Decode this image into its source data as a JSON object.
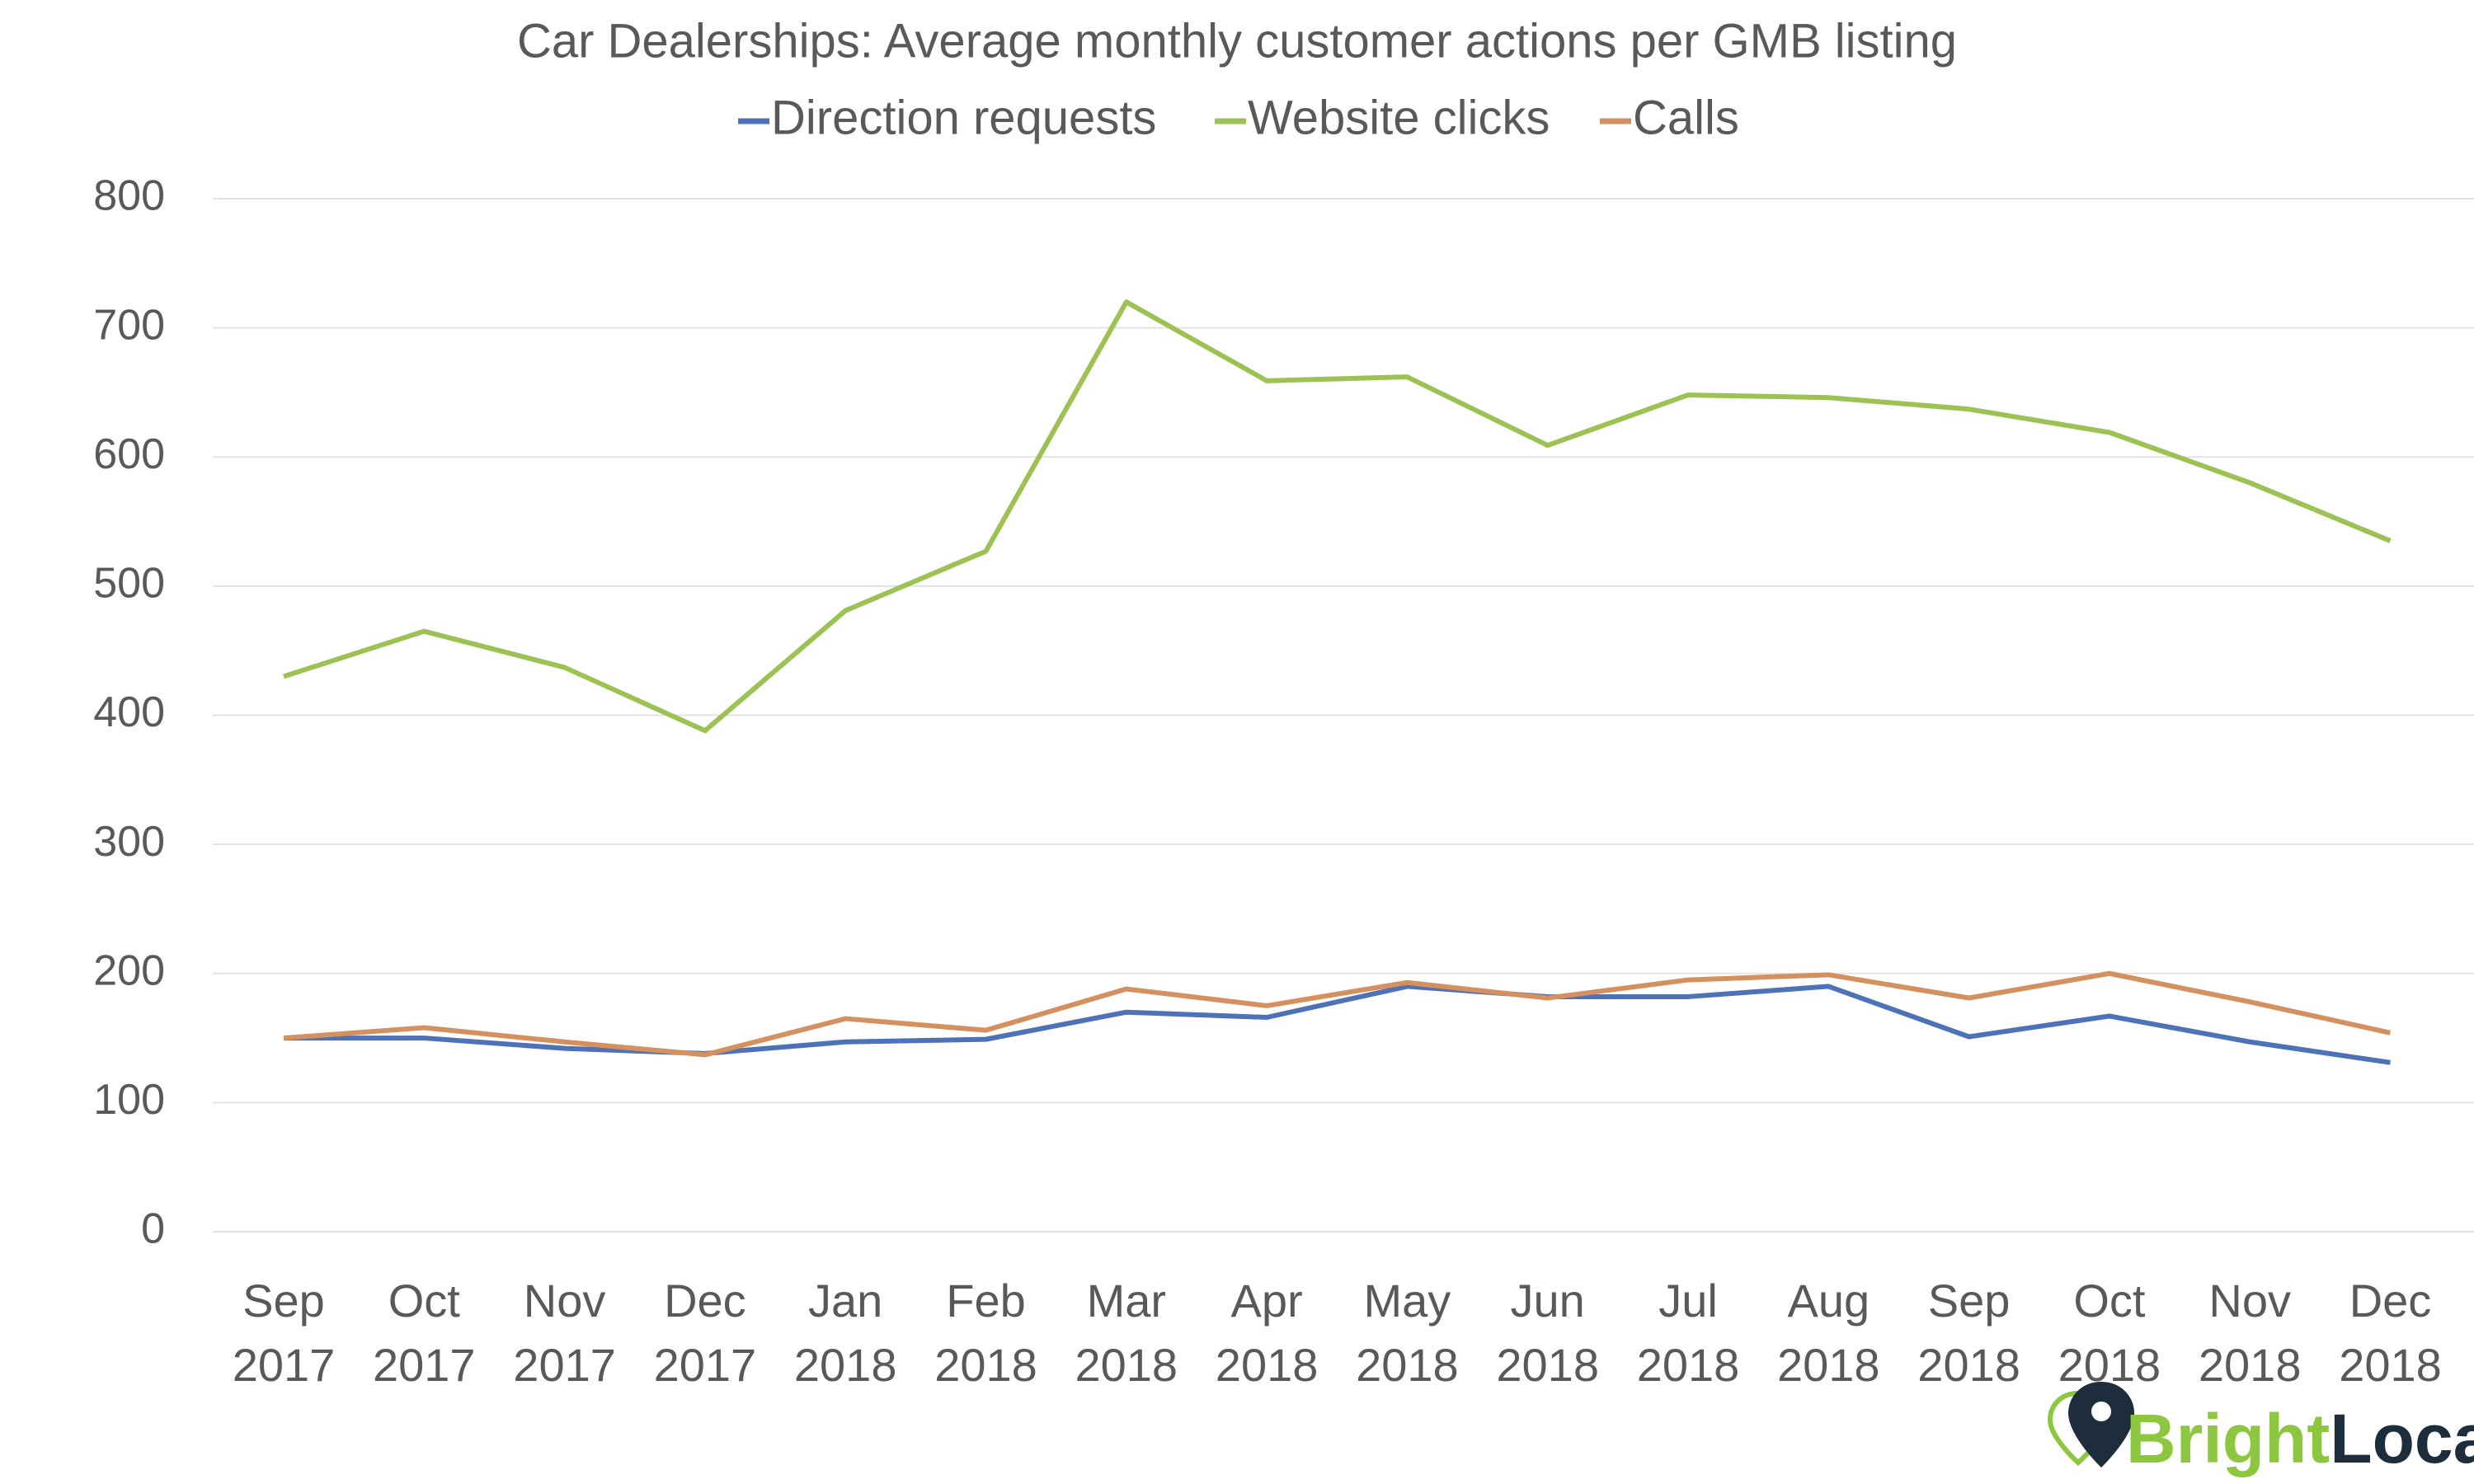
{
  "chart_data": {
    "type": "line",
    "title": "Car Dealerships: Average monthly customer actions per GMB listing",
    "categories": [
      "Sep 2017",
      "Oct 2017",
      "Nov 2017",
      "Dec 2017",
      "Jan 2018",
      "Feb 2018",
      "Mar 2018",
      "Apr 2018",
      "May 2018",
      "Jun 2018",
      "Jul 2018",
      "Aug 2018",
      "Sep 2018",
      "Oct 2018",
      "Nov 2018",
      "Dec 2018"
    ],
    "series": [
      {
        "name": "Direction requests",
        "color": "#4e72b8",
        "values": [
          150,
          150,
          142,
          138,
          147,
          149,
          170,
          166,
          190,
          182,
          182,
          190,
          151,
          167,
          147,
          131
        ]
      },
      {
        "name": "Website clicks",
        "color": "#9bc253",
        "values": [
          430,
          465,
          437,
          388,
          481,
          527,
          720,
          659,
          662,
          609,
          648,
          646,
          637,
          619,
          580,
          535
        ]
      },
      {
        "name": "Calls",
        "color": "#d4915f",
        "values": [
          150,
          158,
          147,
          137,
          165,
          156,
          188,
          175,
          193,
          181,
          195,
          199,
          181,
          200,
          178,
          154
        ]
      }
    ],
    "ylim": [
      0,
      800
    ],
    "yticks": [
      0,
      100,
      200,
      300,
      400,
      500,
      600,
      700,
      800
    ],
    "grid": true,
    "legend": "top"
  },
  "logo": {
    "bright": "Bright",
    "local": "Local"
  }
}
